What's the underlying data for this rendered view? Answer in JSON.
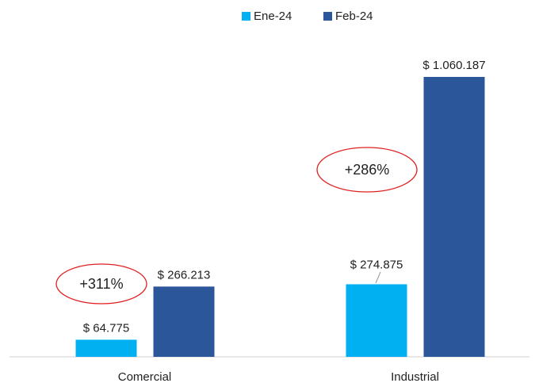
{
  "chart_data": {
    "type": "bar",
    "categories": [
      "Comercial",
      "Industrial"
    ],
    "series": [
      {
        "name": "Ene-24",
        "color": "#00b0f0",
        "values": [
          64775,
          274875
        ],
        "value_labels": [
          "$ 64.775",
          "$ 274.875"
        ]
      },
      {
        "name": "Feb-24",
        "color": "#2b579a",
        "values": [
          266213,
          1060187
        ],
        "value_labels": [
          "$ 266.213",
          "$ 1.060.187"
        ]
      }
    ],
    "annotations": [
      "+311%",
      "+286%"
    ],
    "legend": "top"
  }
}
